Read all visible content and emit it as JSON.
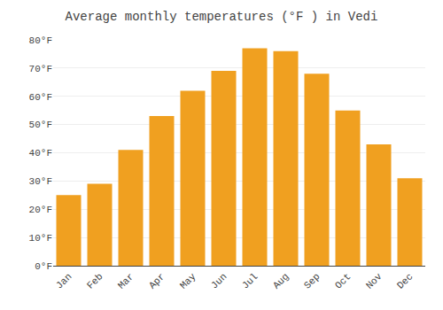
{
  "chart_data": {
    "type": "bar",
    "title": "Average monthly temperatures (°F ) in Vedi",
    "categories": [
      "Jan",
      "Feb",
      "Mar",
      "Apr",
      "May",
      "Jun",
      "Jul",
      "Aug",
      "Sep",
      "Oct",
      "Nov",
      "Dec"
    ],
    "values": [
      25,
      29,
      41,
      53,
      62,
      69,
      77,
      76,
      68,
      55,
      43,
      31
    ],
    "color": "#F0A020",
    "ylim": [
      0,
      80
    ],
    "yticks": [
      {
        "value": 0,
        "label": "0°F"
      },
      {
        "value": 10,
        "label": "10°F"
      },
      {
        "value": 20,
        "label": "20°F"
      },
      {
        "value": 30,
        "label": "30°F"
      },
      {
        "value": 40,
        "label": "40°F"
      },
      {
        "value": 50,
        "label": "50°F"
      },
      {
        "value": 60,
        "label": "60°F"
      },
      {
        "value": 70,
        "label": "70°F"
      },
      {
        "value": 80,
        "label": "80°F"
      }
    ],
    "grid": true
  }
}
